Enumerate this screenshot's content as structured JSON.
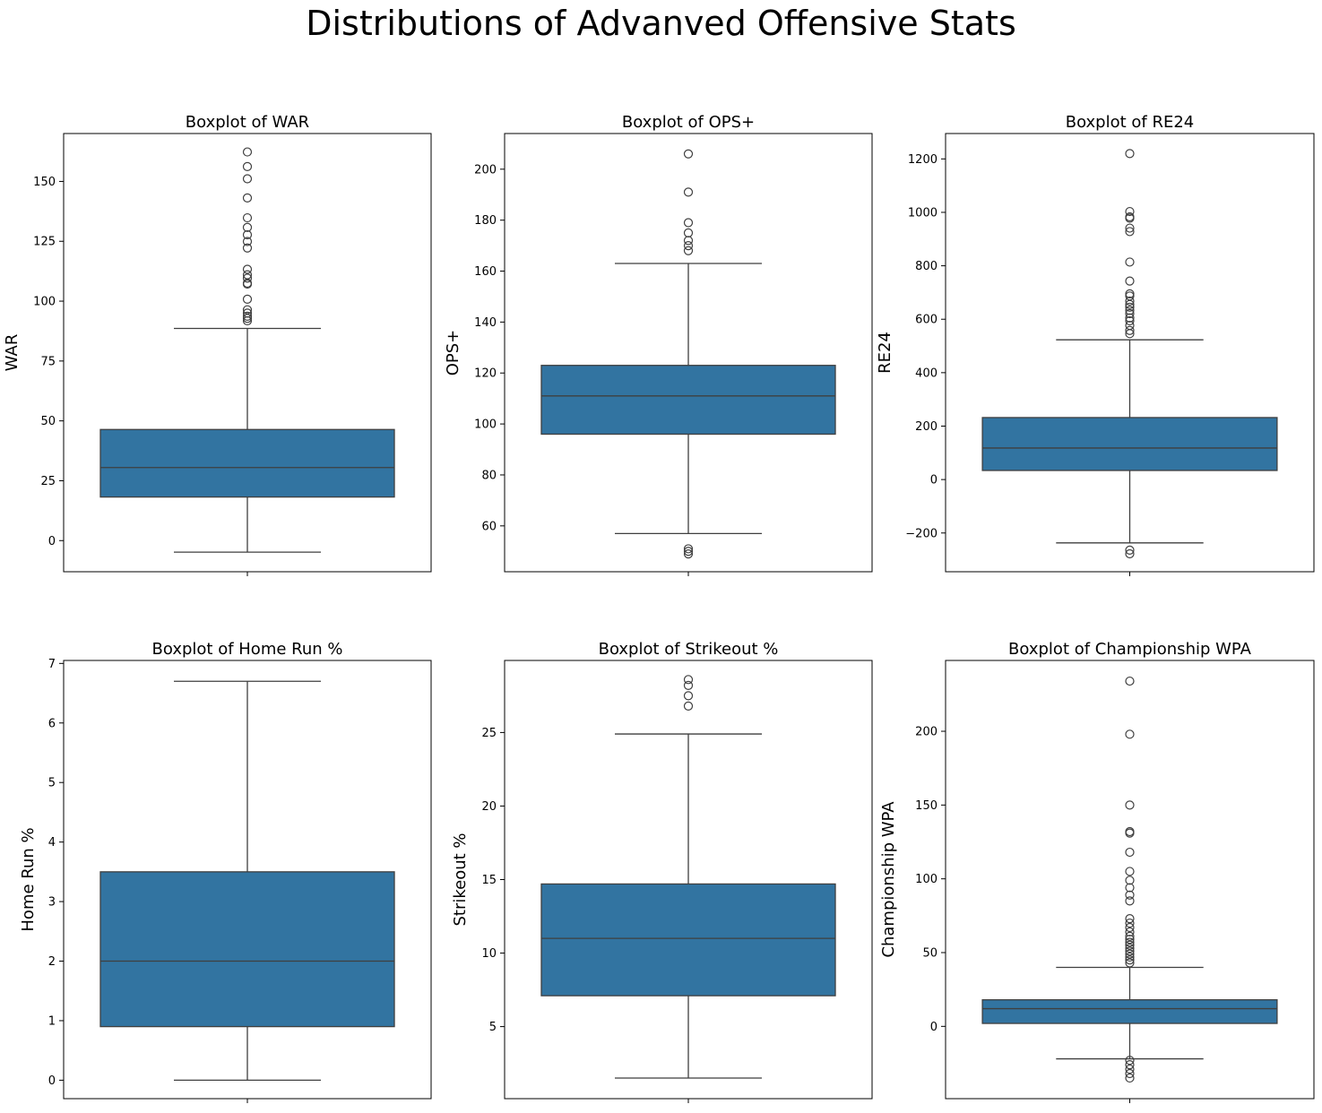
{
  "suptitle": "Distributions of Advanved Offensive Stats",
  "colors": {
    "box_fill": "#3274a1",
    "line": "#3f3f3f",
    "outlier_edge": "#3f3f3f"
  },
  "chart_data": [
    {
      "type": "box",
      "title": "Boxplot of WAR",
      "ylabel": "WAR",
      "ylim": [
        -13,
        170
      ],
      "yticks": [
        0,
        25,
        50,
        75,
        100,
        125,
        150
      ],
      "ytick_labels": [
        "0",
        "25",
        "50",
        "75",
        "100",
        "125",
        "150"
      ],
      "q1": 18.2,
      "median": 30.5,
      "q3": 46.4,
      "whisker_low": -4.8,
      "whisker_high": 88.6,
      "outliers": [
        162.3,
        156.2,
        151.1,
        143.1,
        134.8,
        130.8,
        127.7,
        124.9,
        122.2,
        113.3,
        111.0,
        109.6,
        107.5,
        107.1,
        100.8,
        96.4,
        95.0,
        93.7,
        92.8,
        91.8
      ]
    },
    {
      "type": "box",
      "title": "Boxplot of OPS+",
      "ylabel": "OPS+",
      "ylim": [
        42,
        214
      ],
      "yticks": [
        60,
        80,
        100,
        120,
        140,
        160,
        180,
        200
      ],
      "ytick_labels": [
        "60",
        "80",
        "100",
        "120",
        "140",
        "160",
        "180",
        "200"
      ],
      "q1": 96,
      "median": 111,
      "q3": 123,
      "whisker_low": 57,
      "whisker_high": 163,
      "outliers": [
        206,
        191,
        179,
        175,
        172,
        170,
        168,
        51,
        50,
        49
      ]
    },
    {
      "type": "box",
      "title": "Boxplot of RE24",
      "ylabel": "RE24",
      "ylim": [
        -345,
        1295
      ],
      "yticks": [
        -200,
        0,
        200,
        400,
        600,
        800,
        1000,
        1200
      ],
      "ytick_labels": [
        "−200",
        "0",
        "200",
        "400",
        "600",
        "800",
        "1000",
        "1200"
      ],
      "q1": 34,
      "median": 118,
      "q3": 232,
      "whisker_low": -237,
      "whisker_high": 523,
      "outliers": [
        1220,
        1003,
        983,
        978,
        941,
        928,
        814,
        743,
        695,
        687,
        668,
        655,
        645,
        633,
        621,
        605,
        594,
        577,
        558,
        546,
        -264,
        -278
      ]
    },
    {
      "type": "box",
      "title": "Boxplot of Home Run %",
      "ylabel": "Home Run %",
      "ylim": [
        -0.31,
        7.05
      ],
      "yticks": [
        0,
        1,
        2,
        3,
        4,
        5,
        6,
        7
      ],
      "ytick_labels": [
        "0",
        "1",
        "2",
        "3",
        "4",
        "5",
        "6",
        "7"
      ],
      "q1": 0.9,
      "median": 2.0,
      "q3": 3.5,
      "whisker_low": 0.0,
      "whisker_high": 6.7,
      "outliers": []
    },
    {
      "type": "box",
      "title": "Boxplot of Strikeout %",
      "ylabel": "Strikeout %",
      "ylim": [
        0.1,
        29.9
      ],
      "yticks": [
        5,
        10,
        15,
        20,
        25
      ],
      "ytick_labels": [
        "5",
        "10",
        "15",
        "20",
        "25"
      ],
      "q1": 7.1,
      "median": 11.0,
      "q3": 14.7,
      "whisker_low": 1.5,
      "whisker_high": 24.9,
      "outliers": [
        28.6,
        28.2,
        27.5,
        26.8
      ]
    },
    {
      "type": "box",
      "title": "Boxplot of Championship WPA",
      "ylabel": "Championship WPA",
      "ylim": [
        -49,
        248
      ],
      "yticks": [
        0,
        50,
        100,
        150,
        200
      ],
      "ytick_labels": [
        "0",
        "50",
        "100",
        "150",
        "200"
      ],
      "q1": 2,
      "median": 12,
      "q3": 18,
      "whisker_low": -22,
      "whisker_high": 40,
      "outliers": [
        234,
        198,
        150,
        132,
        131,
        118,
        105,
        99,
        94,
        89,
        85,
        73,
        70,
        67,
        64,
        61,
        59,
        57,
        55,
        53,
        51,
        49,
        47,
        45,
        43,
        -23,
        -26,
        -29,
        -32,
        -35
      ]
    }
  ]
}
